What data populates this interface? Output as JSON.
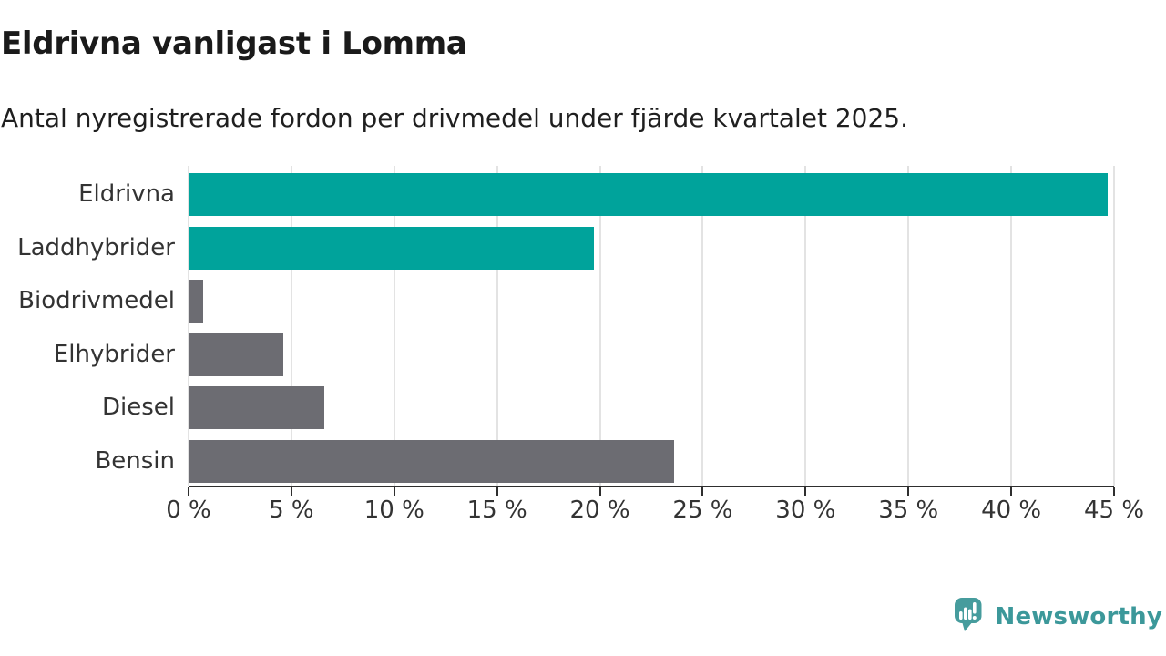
{
  "chart_data": {
    "type": "bar",
    "orientation": "horizontal",
    "title": "Eldrivna vanligast i Lomma",
    "subtitle": "Antal nyregistrerade fordon per drivmedel under fjärde kvartalet 2025.",
    "categories": [
      "Eldrivna",
      "Laddhybrider",
      "Biodrivmedel",
      "Elhybrider",
      "Diesel",
      "Bensin"
    ],
    "values": [
      44.7,
      19.7,
      0.7,
      4.6,
      6.6,
      23.6
    ],
    "unit": "%",
    "xlabel": "",
    "ylabel": "",
    "xlim": [
      0,
      45
    ],
    "x_ticks": [
      0,
      5,
      10,
      15,
      20,
      25,
      30,
      35,
      40,
      45
    ],
    "x_tick_labels": [
      "0 %",
      "5 %",
      "10 %",
      "15 %",
      "20 %",
      "25 %",
      "30 %",
      "35 %",
      "40 %",
      "45 %"
    ],
    "grid": true,
    "legend": "none",
    "bar_colors": [
      "#00a39b",
      "#00a39b",
      "#6c6c72",
      "#6c6c72",
      "#6c6c72",
      "#6c6c72"
    ],
    "highlight_color": "#00a39b",
    "default_color": "#6c6c72",
    "axis_color": "#2e2e2e",
    "gridline_color": "#e3e3e3"
  },
  "footer": {
    "brand": "Newsworthy",
    "logo_icon": "newsworthy-speech-bubble-bar-chart-icon",
    "brand_color": "#3c989a",
    "logo_icon_color": "#469c9d"
  }
}
